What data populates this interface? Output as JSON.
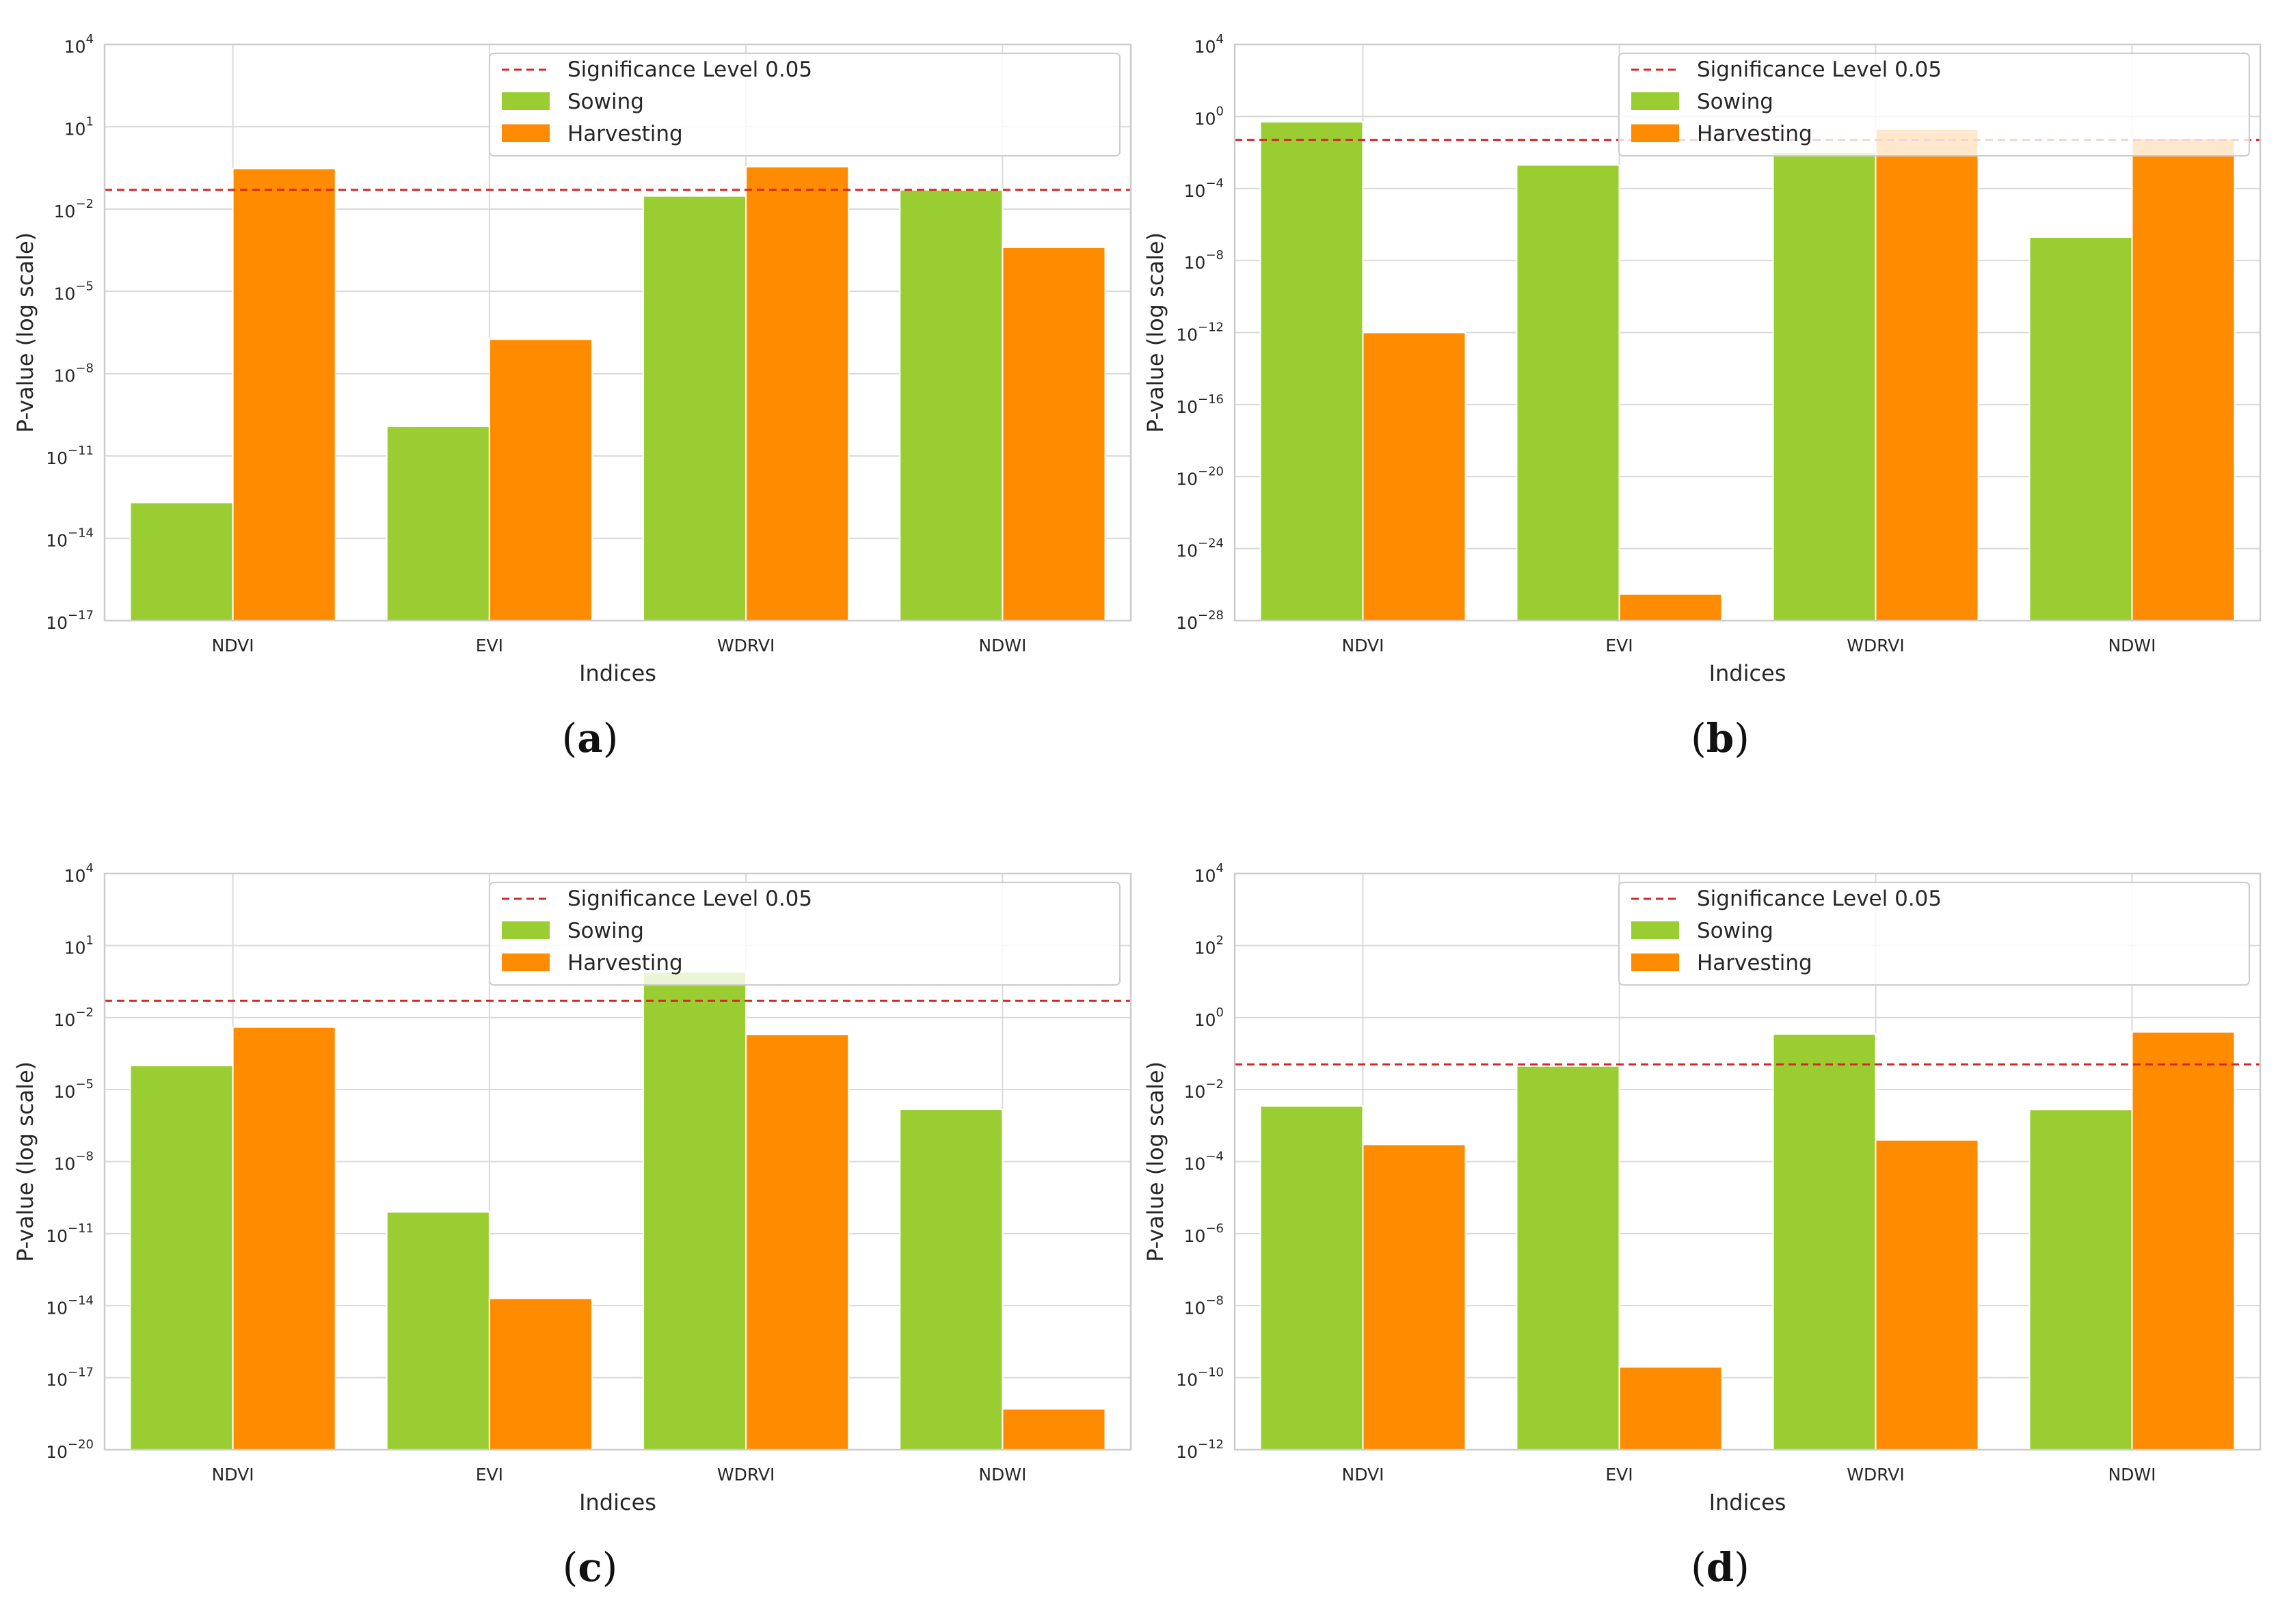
{
  "colors": {
    "sowing": "#9ACD32",
    "harvesting": "#FF8C00",
    "significance": "#D62728",
    "grid": "#D9D9D9",
    "spine": "#CCCCCC"
  },
  "chart_data": [
    {
      "type": "bar",
      "panel": "a",
      "caption_letter": "a",
      "categories": [
        "NDVI",
        "EVI",
        "WDRVI",
        "NDWI"
      ],
      "series": [
        {
          "name": "Sowing",
          "values": [
            2e-13,
            1.2e-10,
            0.03,
            0.05
          ]
        },
        {
          "name": "Harvesting",
          "values": [
            0.3,
            1.8e-07,
            0.35,
            0.0004
          ]
        }
      ],
      "significance": 0.05,
      "xlabel": "Indices",
      "ylabel": "P-value (log scale)",
      "yscale": "log",
      "ylim": [
        1e-17,
        10000.0
      ],
      "yticks": [
        {
          "base": "10",
          "exp": "4",
          "value": 10000.0
        },
        {
          "base": "10",
          "exp": "1",
          "value": 10.0
        },
        {
          "base": "10",
          "exp": "−2",
          "value": 0.01
        },
        {
          "base": "10",
          "exp": "−5",
          "value": 1e-05
        },
        {
          "base": "10",
          "exp": "−8",
          "value": 1e-08
        },
        {
          "base": "10",
          "exp": "−11",
          "value": 1e-11
        },
        {
          "base": "10",
          "exp": "−14",
          "value": 1e-14
        },
        {
          "base": "10",
          "exp": "−17",
          "value": 1e-17
        }
      ],
      "legend": [
        "Significance Level 0.05",
        "Sowing",
        "Harvesting"
      ],
      "legend_loc": "upper right",
      "grid": true
    },
    {
      "type": "bar",
      "panel": "b",
      "caption_letter": "b",
      "categories": [
        "NDVI",
        "EVI",
        "WDRVI",
        "NDWI"
      ],
      "series": [
        {
          "name": "Sowing",
          "values": [
            0.5,
            0.002,
            0.01,
            2e-07
          ]
        },
        {
          "name": "Harvesting",
          "values": [
            1e-12,
            3e-27,
            0.2,
            0.06
          ]
        }
      ],
      "significance": 0.05,
      "xlabel": "Indices",
      "ylabel": "P-value (log scale)",
      "yscale": "log",
      "ylim": [
        1e-28,
        10000.0
      ],
      "yticks": [
        {
          "base": "10",
          "exp": "4",
          "value": 10000.0
        },
        {
          "base": "10",
          "exp": "0",
          "value": 1.0
        },
        {
          "base": "10",
          "exp": "−4",
          "value": 0.0001
        },
        {
          "base": "10",
          "exp": "−8",
          "value": 1e-08
        },
        {
          "base": "10",
          "exp": "−12",
          "value": 1e-12
        },
        {
          "base": "10",
          "exp": "−16",
          "value": 1e-16
        },
        {
          "base": "10",
          "exp": "−20",
          "value": 1e-20
        },
        {
          "base": "10",
          "exp": "−24",
          "value": 1e-24
        },
        {
          "base": "10",
          "exp": "−28",
          "value": 1e-28
        }
      ],
      "legend": [
        "Significance Level 0.05",
        "Sowing",
        "Harvesting"
      ],
      "legend_loc": "upper right",
      "grid": true
    },
    {
      "type": "bar",
      "panel": "c",
      "caption_letter": "c",
      "categories": [
        "NDVI",
        "EVI",
        "WDRVI",
        "NDWI"
      ],
      "series": [
        {
          "name": "Sowing",
          "values": [
            0.0001,
            8e-11,
            0.8,
            1.5e-06
          ]
        },
        {
          "name": "Harvesting",
          "values": [
            0.004,
            2e-14,
            0.002,
            5e-19
          ]
        }
      ],
      "significance": 0.05,
      "xlabel": "Indices",
      "ylabel": "P-value (log scale)",
      "yscale": "log",
      "ylim": [
        1e-20,
        10000.0
      ],
      "yticks": [
        {
          "base": "10",
          "exp": "4",
          "value": 10000.0
        },
        {
          "base": "10",
          "exp": "1",
          "value": 10.0
        },
        {
          "base": "10",
          "exp": "−2",
          "value": 0.01
        },
        {
          "base": "10",
          "exp": "−5",
          "value": 1e-05
        },
        {
          "base": "10",
          "exp": "−8",
          "value": 1e-08
        },
        {
          "base": "10",
          "exp": "−11",
          "value": 1e-11
        },
        {
          "base": "10",
          "exp": "−14",
          "value": 1e-14
        },
        {
          "base": "10",
          "exp": "−17",
          "value": 1e-17
        },
        {
          "base": "10",
          "exp": "−20",
          "value": 1e-20
        }
      ],
      "legend": [
        "Significance Level 0.05",
        "Sowing",
        "Harvesting"
      ],
      "legend_loc": "upper right",
      "grid": true
    },
    {
      "type": "bar",
      "panel": "d",
      "caption_letter": "d",
      "categories": [
        "NDVI",
        "EVI",
        "WDRVI",
        "NDWI"
      ],
      "series": [
        {
          "name": "Sowing",
          "values": [
            0.0035,
            0.045,
            0.35,
            0.0028
          ]
        },
        {
          "name": "Harvesting",
          "values": [
            0.0003,
            2e-10,
            0.0004,
            0.4
          ]
        }
      ],
      "significance": 0.05,
      "xlabel": "Indices",
      "ylabel": "P-value (log scale)",
      "yscale": "log",
      "ylim": [
        1e-12,
        10000.0
      ],
      "yticks": [
        {
          "base": "10",
          "exp": "4",
          "value": 10000.0
        },
        {
          "base": "10",
          "exp": "2",
          "value": 100.0
        },
        {
          "base": "10",
          "exp": "0",
          "value": 1.0
        },
        {
          "base": "10",
          "exp": "−2",
          "value": 0.01
        },
        {
          "base": "10",
          "exp": "−4",
          "value": 0.0001
        },
        {
          "base": "10",
          "exp": "−6",
          "value": 1e-06
        },
        {
          "base": "10",
          "exp": "−8",
          "value": 1e-08
        },
        {
          "base": "10",
          "exp": "−10",
          "value": 1e-10
        },
        {
          "base": "10",
          "exp": "−12",
          "value": 1e-12
        }
      ],
      "legend": [
        "Significance Level 0.05",
        "Sowing",
        "Harvesting"
      ],
      "legend_loc": "upper right",
      "grid": true
    }
  ]
}
